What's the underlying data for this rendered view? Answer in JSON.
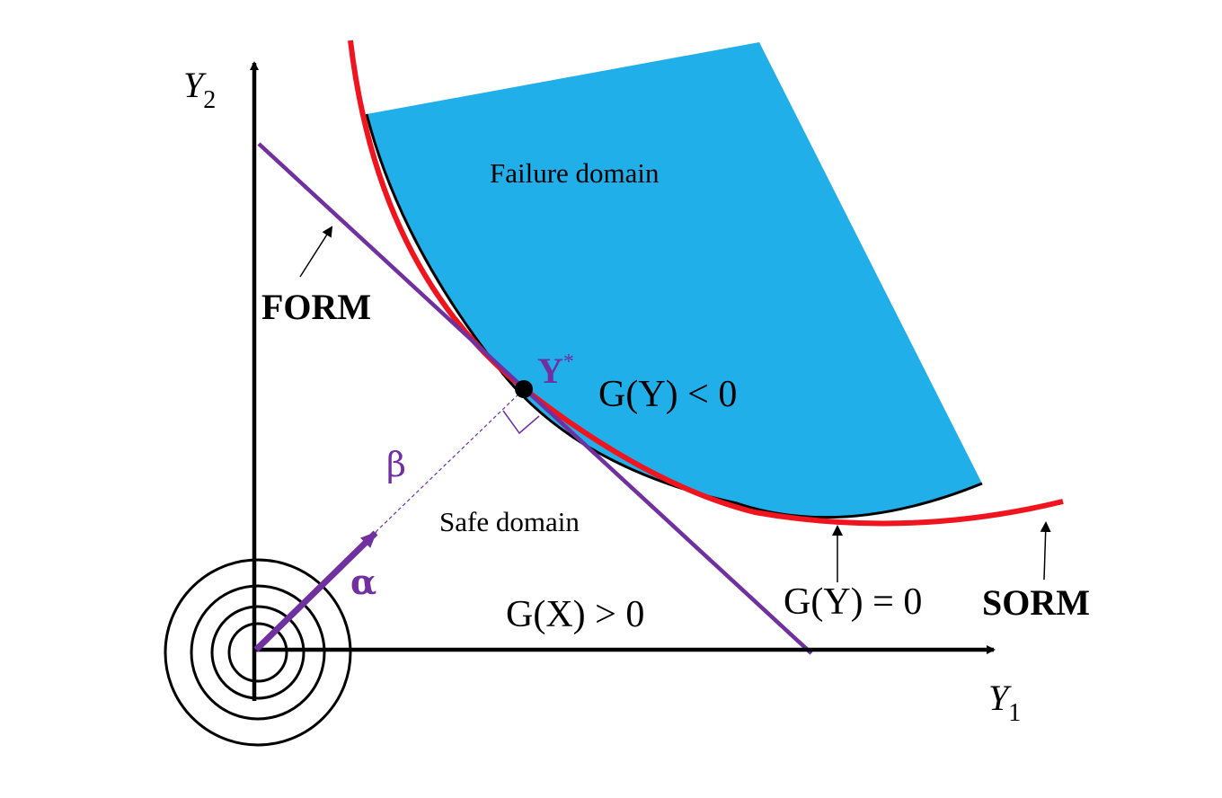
{
  "axes": {
    "y1_base": "Y",
    "y1_sub": "1",
    "y2_base": "Y",
    "y2_sub": "2"
  },
  "labels": {
    "failure_domain": "Failure domain",
    "safe_domain": "Safe domain",
    "form": "FORM",
    "sorm": "SORM",
    "design_point_base": "Y",
    "design_point_sup": "*",
    "beta": "β",
    "alpha": "α",
    "g_fail": "G(Y) < 0",
    "g_limit": "G(Y) = 0",
    "g_safe": "G(X) > 0"
  },
  "colors": {
    "failure_fill": "#21AFEA",
    "sorm_curve": "#F0141E",
    "form_line": "#7030A0",
    "label_purple": "#7030A0",
    "axis": "#000000"
  }
}
